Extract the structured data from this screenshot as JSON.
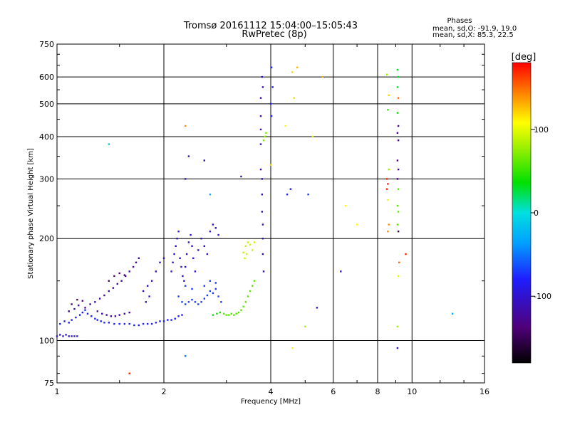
{
  "chart_data": {
    "type": "scatter",
    "title": "Tromsø 20161112 15:04:00–15:05:43",
    "subtitle": "RwPretec (8p)",
    "xlabel": "Frequency [MHz]",
    "ylabel": "Stationary phase Virtual Height [km]",
    "x_scale": "log",
    "y_scale": "log",
    "xlim": [
      1,
      16
    ],
    "ylim": [
      75,
      750
    ],
    "x_ticks": [
      1,
      2,
      4,
      6,
      8,
      10,
      16
    ],
    "y_ticks": [
      75,
      100,
      200,
      300,
      400,
      500,
      600,
      750
    ],
    "grid": true,
    "phase_stats": {
      "heading": "Phases",
      "line_o": "mean, sd,O: -91.9, 19.0",
      "line_x": "mean, sd,X:  85.3, 22.5"
    },
    "colorbar": {
      "label": "[deg]",
      "ticks": [
        100,
        0,
        -100
      ],
      "range": [
        -180,
        180
      ]
    },
    "points": [
      [
        1.0,
        103,
        -95
      ],
      [
        1.02,
        104,
        -95
      ],
      [
        1.04,
        103,
        -95
      ],
      [
        1.06,
        104,
        -95
      ],
      [
        1.08,
        103,
        -95
      ],
      [
        1.1,
        103,
        -95
      ],
      [
        1.12,
        103,
        -95
      ],
      [
        1.14,
        103,
        -95
      ],
      [
        1.02,
        112,
        -80
      ],
      [
        1.05,
        114,
        -80
      ],
      [
        1.08,
        113,
        -80
      ],
      [
        1.1,
        115,
        -80
      ],
      [
        1.13,
        117,
        -80
      ],
      [
        1.16,
        119,
        -80
      ],
      [
        1.18,
        121,
        -80
      ],
      [
        1.2,
        123,
        -80
      ],
      [
        1.22,
        120,
        -80
      ],
      [
        1.25,
        118,
        -80
      ],
      [
        1.28,
        116,
        -80
      ],
      [
        1.3,
        115,
        -80
      ],
      [
        1.33,
        114,
        -80
      ],
      [
        1.36,
        113,
        -80
      ],
      [
        1.4,
        113,
        -80
      ],
      [
        1.45,
        112,
        -80
      ],
      [
        1.5,
        112,
        -80
      ],
      [
        1.55,
        112,
        -80
      ],
      [
        1.6,
        112,
        -80
      ],
      [
        1.65,
        111,
        -80
      ],
      [
        1.7,
        111,
        -80
      ],
      [
        1.75,
        112,
        -80
      ],
      [
        1.8,
        112,
        -80
      ],
      [
        1.85,
        112,
        -80
      ],
      [
        1.9,
        113,
        -80
      ],
      [
        1.95,
        114,
        -80
      ],
      [
        2.0,
        114,
        -80
      ],
      [
        2.05,
        115,
        -80
      ],
      [
        2.1,
        115,
        -80
      ],
      [
        2.15,
        116,
        -80
      ],
      [
        2.2,
        118,
        -80
      ],
      [
        2.25,
        119,
        -80
      ],
      [
        1.2,
        125,
        -120
      ],
      [
        1.24,
        128,
        -120
      ],
      [
        1.28,
        130,
        -120
      ],
      [
        1.32,
        133,
        -120
      ],
      [
        1.36,
        136,
        -120
      ],
      [
        1.4,
        140,
        -120
      ],
      [
        1.44,
        143,
        -120
      ],
      [
        1.48,
        147,
        -120
      ],
      [
        1.52,
        150,
        -120
      ],
      [
        1.56,
        155,
        -120
      ],
      [
        1.6,
        160,
        -120
      ],
      [
        1.64,
        165,
        -120
      ],
      [
        1.67,
        170,
        -120
      ],
      [
        1.7,
        175,
        -120
      ],
      [
        1.15,
        127,
        -120
      ],
      [
        1.12,
        124,
        -120
      ],
      [
        1.3,
        122,
        -120
      ],
      [
        1.34,
        120,
        -120
      ],
      [
        1.38,
        119,
        -120
      ],
      [
        1.42,
        118,
        -120
      ],
      [
        1.46,
        118,
        -120
      ],
      [
        1.5,
        119,
        -120
      ],
      [
        1.55,
        120,
        -120
      ],
      [
        1.6,
        121,
        -120
      ],
      [
        1.08,
        122,
        -140
      ],
      [
        1.1,
        128,
        -140
      ],
      [
        1.14,
        132,
        -140
      ],
      [
        1.18,
        131,
        -140
      ],
      [
        1.4,
        150,
        -140
      ],
      [
        1.45,
        155,
        -140
      ],
      [
        1.5,
        158,
        -140
      ],
      [
        1.55,
        156,
        -140
      ],
      [
        1.75,
        140,
        -110
      ],
      [
        1.8,
        145,
        -110
      ],
      [
        1.85,
        150,
        -110
      ],
      [
        1.9,
        160,
        -110
      ],
      [
        1.95,
        170,
        -110
      ],
      [
        2.0,
        175,
        -110
      ],
      [
        1.78,
        130,
        -110
      ],
      [
        1.82,
        135,
        -110
      ],
      [
        2.1,
        160,
        -100
      ],
      [
        2.12,
        170,
        -100
      ],
      [
        2.14,
        180,
        -100
      ],
      [
        2.16,
        190,
        -100
      ],
      [
        2.18,
        200,
        -100
      ],
      [
        2.2,
        210,
        -100
      ],
      [
        2.22,
        175,
        -100
      ],
      [
        2.24,
        165,
        -100
      ],
      [
        2.26,
        155,
        -100
      ],
      [
        2.28,
        150,
        -100
      ],
      [
        2.3,
        165,
        -100
      ],
      [
        2.32,
        180,
        -100
      ],
      [
        2.35,
        195,
        -100
      ],
      [
        2.38,
        205,
        -100
      ],
      [
        2.4,
        190,
        -100
      ],
      [
        2.42,
        175,
        -100
      ],
      [
        2.45,
        160,
        -100
      ],
      [
        2.5,
        185,
        -100
      ],
      [
        2.55,
        200,
        -100
      ],
      [
        2.6,
        190,
        -100
      ],
      [
        2.65,
        180,
        -100
      ],
      [
        2.7,
        210,
        -100
      ],
      [
        2.75,
        220,
        -100
      ],
      [
        2.8,
        215,
        -100
      ],
      [
        2.85,
        205,
        -100
      ],
      [
        2.2,
        135,
        -70
      ],
      [
        2.25,
        130,
        -70
      ],
      [
        2.3,
        128,
        -70
      ],
      [
        2.35,
        130,
        -70
      ],
      [
        2.4,
        132,
        -70
      ],
      [
        2.45,
        130,
        -70
      ],
      [
        2.5,
        128,
        -70
      ],
      [
        2.55,
        130,
        -70
      ],
      [
        2.6,
        133,
        -70
      ],
      [
        2.65,
        136,
        -70
      ],
      [
        2.7,
        140,
        -70
      ],
      [
        2.75,
        138,
        -70
      ],
      [
        2.8,
        142,
        -70
      ],
      [
        2.85,
        135,
        -70
      ],
      [
        2.9,
        130,
        -70
      ],
      [
        2.3,
        145,
        -70
      ],
      [
        2.4,
        142,
        -70
      ],
      [
        2.6,
        145,
        -70
      ],
      [
        2.7,
        150,
        -70
      ],
      [
        2.8,
        148,
        -70
      ],
      [
        2.95,
        120,
        60
      ],
      [
        3.0,
        119,
        60
      ],
      [
        3.05,
        119,
        60
      ],
      [
        3.1,
        120,
        60
      ],
      [
        3.15,
        119,
        60
      ],
      [
        3.2,
        120,
        60
      ],
      [
        3.25,
        121,
        60
      ],
      [
        3.3,
        123,
        60
      ],
      [
        3.35,
        126,
        60
      ],
      [
        3.4,
        130,
        60
      ],
      [
        3.45,
        135,
        60
      ],
      [
        3.5,
        140,
        60
      ],
      [
        3.55,
        145,
        60
      ],
      [
        3.6,
        150,
        60
      ],
      [
        3.35,
        182,
        90
      ],
      [
        3.4,
        190,
        90
      ],
      [
        3.45,
        195,
        90
      ],
      [
        3.5,
        192,
        90
      ],
      [
        3.55,
        185,
        90
      ],
      [
        3.38,
        175,
        90
      ],
      [
        3.42,
        180,
        90
      ],
      [
        3.6,
        195,
        90
      ],
      [
        2.75,
        119,
        40
      ],
      [
        2.82,
        120,
        40
      ],
      [
        2.88,
        121,
        40
      ],
      [
        3.75,
        420,
        -110
      ],
      [
        3.75,
        380,
        -110
      ],
      [
        3.75,
        320,
        -110
      ],
      [
        3.78,
        300,
        -110
      ],
      [
        3.78,
        270,
        -110
      ],
      [
        3.78,
        240,
        -110
      ],
      [
        3.8,
        220,
        -110
      ],
      [
        3.8,
        200,
        -110
      ],
      [
        3.8,
        180,
        -110
      ],
      [
        3.82,
        160,
        -110
      ],
      [
        3.75,
        460,
        -110
      ],
      [
        3.75,
        520,
        -110
      ],
      [
        3.8,
        560,
        -110
      ],
      [
        3.78,
        600,
        -110
      ],
      [
        3.85,
        400,
        70
      ],
      [
        3.88,
        410,
        70
      ],
      [
        3.82,
        390,
        70
      ],
      [
        4.02,
        640,
        -80
      ],
      [
        4.05,
        560,
        -80
      ],
      [
        4.0,
        500,
        -80
      ],
      [
        4.02,
        460,
        -80
      ],
      [
        4.6,
        620,
        120
      ],
      [
        4.65,
        520,
        120
      ],
      [
        4.75,
        640,
        130
      ],
      [
        4.4,
        430,
        110
      ],
      [
        4.55,
        280,
        -80
      ],
      [
        4.45,
        270,
        -80
      ],
      [
        5.25,
        400,
        100
      ],
      [
        5.6,
        600,
        130
      ],
      [
        6.5,
        250,
        110
      ],
      [
        7.0,
        220,
        110
      ],
      [
        5.4,
        125,
        -100
      ],
      [
        5.1,
        270,
        -70
      ],
      [
        6.3,
        160,
        -100
      ],
      [
        5.0,
        110,
        80
      ],
      [
        4.6,
        95,
        110
      ],
      [
        8.5,
        610,
        80
      ],
      [
        8.6,
        530,
        120
      ],
      [
        8.55,
        480,
        50
      ],
      [
        8.5,
        300,
        170
      ],
      [
        8.55,
        290,
        170
      ],
      [
        8.5,
        280,
        170
      ],
      [
        8.6,
        320,
        80
      ],
      [
        8.55,
        260,
        100
      ],
      [
        8.6,
        220,
        140
      ],
      [
        8.55,
        210,
        140
      ],
      [
        9.1,
        630,
        30
      ],
      [
        9.15,
        600,
        30
      ],
      [
        9.1,
        560,
        30
      ],
      [
        9.15,
        520,
        150
      ],
      [
        9.1,
        470,
        40
      ],
      [
        9.15,
        430,
        -130
      ],
      [
        9.1,
        410,
        -130
      ],
      [
        9.15,
        390,
        -130
      ],
      [
        9.1,
        340,
        -130
      ],
      [
        9.15,
        320,
        -130
      ],
      [
        9.1,
        300,
        -130
      ],
      [
        9.15,
        280,
        60
      ],
      [
        9.1,
        250,
        60
      ],
      [
        9.15,
        240,
        60
      ],
      [
        9.1,
        220,
        60
      ],
      [
        9.15,
        210,
        -150
      ],
      [
        9.2,
        170,
        150
      ],
      [
        9.15,
        155,
        100
      ],
      [
        9.1,
        110,
        80
      ],
      [
        9.1,
        95,
        -100
      ],
      [
        9.6,
        180,
        170
      ],
      [
        13.0,
        120,
        -30
      ],
      [
        1.4,
        380,
        -10
      ],
      [
        1.6,
        80,
        170
      ],
      [
        2.3,
        430,
        140
      ],
      [
        2.35,
        350,
        -110
      ],
      [
        2.3,
        300,
        -110
      ],
      [
        2.6,
        340,
        -110
      ],
      [
        2.7,
        270,
        -30
      ],
      [
        3.3,
        305,
        -110
      ],
      [
        2.3,
        90,
        -50
      ],
      [
        4.0,
        330,
        120
      ]
    ]
  }
}
